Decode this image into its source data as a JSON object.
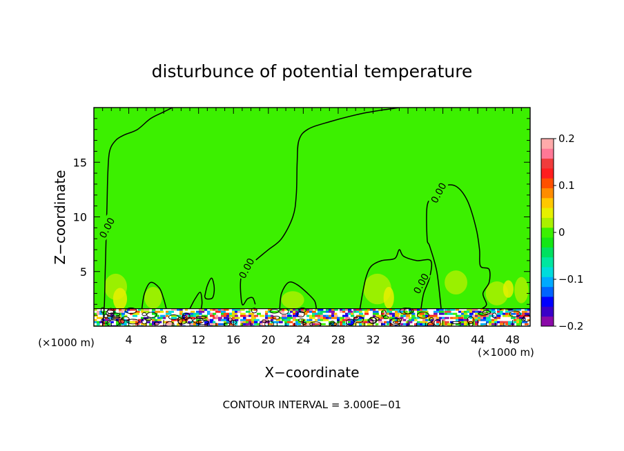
{
  "chart_data": {
    "type": "heatmap",
    "title": "disturbunce of potential temperature",
    "xlabel": "X−coordinate",
    "ylabel": "Z−coordinate",
    "x_unit": "(×1000 m)",
    "x_unit_right": "(×1000 m)",
    "xlim": [
      0,
      50
    ],
    "ylim": [
      0,
      20
    ],
    "x_ticks": [
      4,
      8,
      12,
      16,
      20,
      24,
      28,
      32,
      36,
      40,
      44,
      48
    ],
    "y_ticks": [
      5,
      10,
      15
    ],
    "colorbar": {
      "range": [
        -0.2,
        0.2
      ],
      "tick_values": [
        0.2,
        0.1,
        0,
        -0.1,
        -0.2
      ],
      "tick_labels": [
        "0.2",
        "0.1",
        "0",
        "−0.1",
        "−0.2"
      ],
      "colors": [
        "#8a0aa8",
        "#3a00c8",
        "#0000ff",
        "#0064ff",
        "#00aaff",
        "#00dcdc",
        "#00e6a0",
        "#00e060",
        "#14e614",
        "#3cf000",
        "#aaf000",
        "#e6f000",
        "#ffc800",
        "#ff8c00",
        "#ff5000",
        "#ff1e1e",
        "#f03c3c",
        "#ff7896",
        "#ffaaaa"
      ]
    },
    "background_value": 0.0,
    "contour_label": "0.00",
    "contour_interval_text": "CONTOUR INTERVAL = 3.000E−01",
    "zero_contours": [
      {
        "label_at": [
          1.5,
          9
        ],
        "points": [
          [
            1.0,
            0
          ],
          [
            1.2,
            2
          ],
          [
            1.3,
            5
          ],
          [
            1.4,
            8
          ],
          [
            1.5,
            11
          ],
          [
            1.6,
            14
          ],
          [
            1.8,
            16
          ],
          [
            2.5,
            17
          ],
          [
            3.5,
            17.5
          ],
          [
            5,
            18
          ],
          [
            6.5,
            19
          ],
          [
            8,
            19.6
          ],
          [
            9,
            20
          ]
        ]
      },
      {
        "label_at": [
          17.5,
          5.3
        ],
        "points": [
          [
            35,
            20
          ],
          [
            31,
            19.5
          ],
          [
            27,
            18.7
          ],
          [
            24.5,
            18
          ],
          [
            23.5,
            17
          ],
          [
            23.3,
            15
          ],
          [
            23.2,
            12
          ],
          [
            22.8,
            10
          ],
          [
            21.5,
            8
          ],
          [
            20,
            7
          ],
          [
            18.5,
            6
          ],
          [
            17.2,
            5
          ],
          [
            16.8,
            4
          ],
          [
            17,
            2
          ],
          [
            17.6,
            2.5
          ],
          [
            18.2,
            2.6
          ],
          [
            18.5,
            2
          ]
        ]
      },
      {
        "label_at": [
          37.5,
          3.9
        ],
        "points": [
          [
            30.5,
            1.6
          ],
          [
            30.8,
            3
          ],
          [
            31.2,
            4.5
          ],
          [
            31.8,
            5.5
          ],
          [
            33,
            6
          ],
          [
            34.5,
            6.2
          ],
          [
            35,
            7
          ],
          [
            35.5,
            6.4
          ],
          [
            37,
            6
          ],
          [
            38.6,
            6
          ],
          [
            38.5,
            4.5
          ],
          [
            37.8,
            3
          ],
          [
            37.5,
            1.6
          ]
        ]
      },
      {
        "label_at": [
          39.5,
          12.2
        ],
        "points": [
          [
            39.8,
            1.6
          ],
          [
            39.3,
            5
          ],
          [
            38.5,
            7.3
          ],
          [
            38.2,
            8
          ],
          [
            38.2,
            11
          ],
          [
            39,
            12
          ],
          [
            40,
            12.8
          ],
          [
            41.5,
            12.8
          ],
          [
            42.8,
            11.5
          ],
          [
            43.8,
            9
          ],
          [
            44.2,
            7
          ],
          [
            44.3,
            5.5
          ],
          [
            45.3,
            5.2
          ],
          [
            45.3,
            4
          ],
          [
            44.6,
            3
          ],
          [
            45,
            2
          ],
          [
            44.5,
            1.6
          ]
        ]
      },
      {
        "label_at": null,
        "points": [
          [
            5.5,
            1.6
          ],
          [
            5.8,
            3
          ],
          [
            6.5,
            4
          ],
          [
            7.5,
            3.5
          ],
          [
            8,
            2.5
          ],
          [
            8.3,
            1.6
          ]
        ]
      },
      {
        "label_at": null,
        "points": [
          [
            12.7,
            2.7
          ],
          [
            13,
            3.7
          ],
          [
            13.5,
            4.4
          ],
          [
            13.8,
            3.5
          ],
          [
            13.6,
            2.6
          ],
          [
            12.9,
            2.5
          ],
          [
            12.7,
            2.7
          ]
        ]
      },
      {
        "label_at": null,
        "points": [
          [
            11,
            1.6
          ],
          [
            11.6,
            2.5
          ],
          [
            12.2,
            3.1
          ],
          [
            12.4,
            2.2
          ],
          [
            12.3,
            1.6
          ]
        ]
      },
      {
        "label_at": null,
        "points": [
          [
            21.3,
            1.6
          ],
          [
            21.5,
            3
          ],
          [
            22.3,
            4
          ],
          [
            23.3,
            3.8
          ],
          [
            24.5,
            3
          ],
          [
            25.3,
            2.3
          ],
          [
            25.5,
            1.6
          ]
        ]
      },
      {
        "label_at": null,
        "points": [
          [
            46.5,
            1.5
          ],
          [
            47,
            1.6
          ],
          [
            48,
            1.5
          ]
        ]
      }
    ],
    "warm_patches": [
      {
        "x": 2.5,
        "z": 3.6,
        "rx": 1.3,
        "rz": 1.2,
        "value": 0.03
      },
      {
        "x": 3.0,
        "z": 2.5,
        "rx": 0.8,
        "rz": 1.0,
        "value": 0.05
      },
      {
        "x": 6.8,
        "z": 2.6,
        "rx": 1.0,
        "rz": 1.0,
        "value": 0.03
      },
      {
        "x": 22.8,
        "z": 2.4,
        "rx": 1.3,
        "rz": 0.8,
        "value": 0.03
      },
      {
        "x": 32.5,
        "z": 3.4,
        "rx": 1.6,
        "rz": 1.4,
        "value": 0.03
      },
      {
        "x": 33.8,
        "z": 2.6,
        "rx": 0.6,
        "rz": 1.0,
        "value": 0.05
      },
      {
        "x": 41.5,
        "z": 4.0,
        "rx": 1.3,
        "rz": 1.1,
        "value": 0.03
      },
      {
        "x": 46.2,
        "z": 3.0,
        "rx": 1.3,
        "rz": 1.1,
        "value": 0.03
      },
      {
        "x": 47.5,
        "z": 3.4,
        "rx": 0.6,
        "rz": 0.8,
        "value": 0.04
      },
      {
        "x": 49.0,
        "z": 3.3,
        "rx": 0.8,
        "rz": 1.2,
        "value": 0.03
      }
    ],
    "surface_band": {
      "z_top": 1.6,
      "note_value_range": [
        -0.2,
        0.2
      ]
    }
  }
}
